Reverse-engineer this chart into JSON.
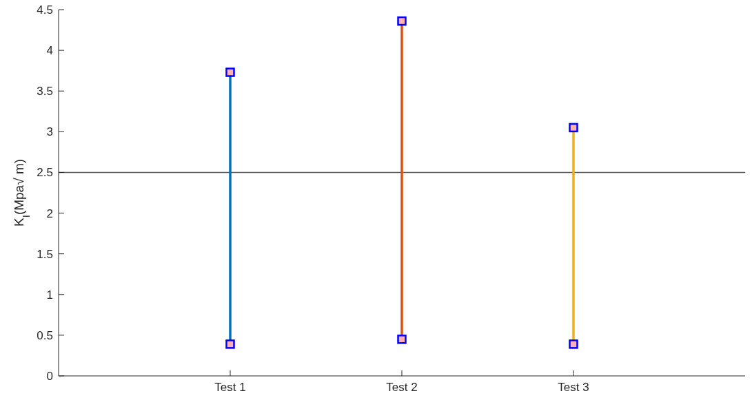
{
  "chart_data": {
    "type": "line",
    "ylabel": "K$_{I}$(Mpa√ m)",
    "categories": [
      "Test 1",
      "Test 2",
      "Test 3"
    ],
    "series": [
      {
        "color": "#0072bd",
        "x": [
          "Test 1",
          "Test 1"
        ],
        "values": [
          0.39,
          3.73
        ]
      },
      {
        "color": "#d95319",
        "x": [
          "Test 2",
          "Test 2"
        ],
        "values": [
          0.45,
          4.36
        ]
      },
      {
        "color": "#edb120",
        "x": [
          "Test 3",
          "Test 3"
        ],
        "values": [
          0.39,
          3.05
        ]
      }
    ],
    "marker": "square",
    "line_style": "solid",
    "ylim": [
      0,
      4.5
    ],
    "yticks": [
      0,
      0.5,
      1,
      1.5,
      2,
      2.5,
      3,
      3.5,
      4,
      4.5
    ],
    "ref_lines": [
      {
        "axis": "y",
        "value": 2.5,
        "color": "#555555"
      }
    ],
    "grid": false,
    "legend": false
  }
}
